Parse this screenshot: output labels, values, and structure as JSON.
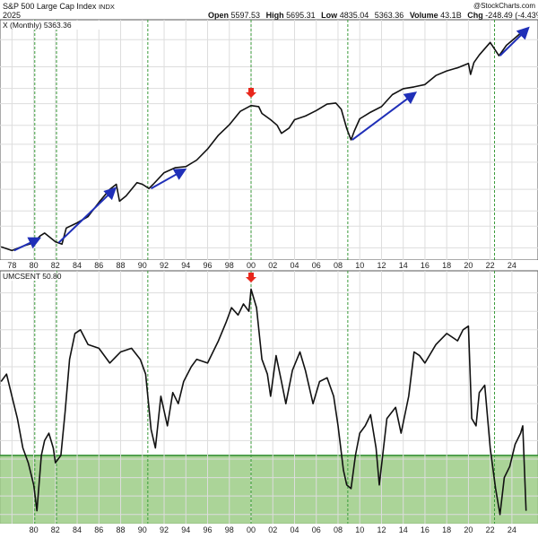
{
  "header": {
    "title": "S&P 500 Large Cap Index",
    "exchange": "INDX",
    "date": "2025",
    "open_label": "Open",
    "open": "5597.53",
    "high_label": "High",
    "high": "5695.31",
    "low_label": "Low",
    "low": "4835.04",
    "close": "5363.36",
    "volume_label": "Volume",
    "volume": "43.1B",
    "chg_label": "Chg",
    "chg": "-248.49 (-4.43%)",
    "watermark": "@StockCharts.com",
    "top_legend": "X (Monthly) 5363.36",
    "bottom_legend": "UMCSENT 50.80"
  },
  "colors": {
    "price_line": "#111111",
    "trend_arrow": "#1f2fb8",
    "peak_marker": "#e8271c",
    "recession_line": "#3a9a3a",
    "zone_fill": "#9ccc86",
    "zone_border": "#2e8b2e",
    "grid": "#dddddd"
  },
  "chart_data": [
    {
      "type": "line",
      "name": "top-panel",
      "scale": "log",
      "xlim": [
        1976.9,
        2026.4
      ],
      "ylim": [
        85,
        6800
      ],
      "x": [
        1977.0,
        1978.0,
        1979.0,
        1980.0,
        1980.6,
        1981.0,
        1982.0,
        1982.6,
        1983.0,
        1984.0,
        1985.0,
        1986.0,
        1987.0,
        1987.6,
        1987.9,
        1988.5,
        1989.5,
        1990.0,
        1990.6,
        1991.0,
        1992.0,
        1993.0,
        1994.0,
        1995.0,
        1996.0,
        1997.0,
        1998.0,
        1999.0,
        2000.0,
        2000.7,
        2001.0,
        2001.8,
        2002.4,
        2002.8,
        2003.5,
        2004.0,
        2005.0,
        2006.0,
        2007.0,
        2007.8,
        2008.3,
        2008.8,
        2009.2,
        2009.5,
        2010.0,
        2011.0,
        2012.0,
        2013.0,
        2014.0,
        2015.0,
        2016.0,
        2017.0,
        2018.0,
        2019.0,
        2020.0,
        2020.2,
        2020.5,
        2021.0,
        2022.0,
        2022.8,
        2023.0,
        2023.5,
        2024.0,
        2024.8,
        2025.0,
        2025.3
      ],
      "y": [
        102,
        95,
        103,
        110,
        125,
        132,
        112,
        107,
        145,
        160,
        180,
        235,
        300,
        330,
        240,
        265,
        340,
        330,
        305,
        330,
        410,
        450,
        460,
        520,
        640,
        830,
        1010,
        1300,
        1450,
        1420,
        1250,
        1110,
        1000,
        860,
        950,
        1110,
        1190,
        1320,
        1490,
        1520,
        1350,
        940,
        760,
        900,
        1130,
        1280,
        1420,
        1780,
        1990,
        2060,
        2150,
        2550,
        2780,
        2950,
        3200,
        2600,
        3250,
        3750,
        4750,
        3700,
        3900,
        4500,
        4900,
        5650,
        5890,
        5363
      ],
      "annotations": [
        {
          "type": "trend-arrow",
          "x": [
            1978.2,
            1980.4
          ],
          "y": [
            95,
            118
          ]
        },
        {
          "type": "trend-arrow",
          "x": [
            1982.3,
            1987.4
          ],
          "y": [
            110,
            300
          ]
        },
        {
          "type": "trend-arrow",
          "x": [
            1990.8,
            1993.8
          ],
          "y": [
            305,
            430
          ]
        },
        {
          "type": "trend-arrow",
          "x": [
            2009.3,
            2015.0
          ],
          "y": [
            760,
            1810
          ]
        },
        {
          "type": "trend-arrow",
          "x": [
            2022.9,
            2025.4
          ],
          "y": [
            3700,
            6100
          ]
        },
        {
          "type": "peak-marker",
          "x": 2000.0,
          "y": 1680
        }
      ],
      "xticks": [
        "78",
        "80",
        "82",
        "84",
        "86",
        "88",
        "90",
        "92",
        "94",
        "96",
        "98",
        "00",
        "02",
        "04",
        "06",
        "08",
        "10",
        "12",
        "14",
        "16",
        "18",
        "20",
        "22",
        "24"
      ]
    },
    {
      "type": "line",
      "name": "UMCSENT",
      "xlim": [
        1976.9,
        2026.4
      ],
      "ylim": [
        48,
        115
      ],
      "x": [
        1977.0,
        1977.5,
        1978.0,
        1978.5,
        1979.0,
        1979.5,
        1980.0,
        1980.3,
        1980.7,
        1981.0,
        1981.4,
        1981.8,
        1982.0,
        1982.5,
        1982.9,
        1983.3,
        1983.8,
        1984.3,
        1985.0,
        1986.0,
        1987.0,
        1988.0,
        1989.0,
        1989.8,
        1990.3,
        1990.8,
        1991.2,
        1991.7,
        1992.3,
        1992.8,
        1993.3,
        1993.8,
        1994.5,
        1995.0,
        1996.0,
        1997.0,
        1997.7,
        1998.2,
        1998.8,
        1999.3,
        1999.8,
        2000.0,
        2000.5,
        2001.0,
        2001.5,
        2001.8,
        2002.3,
        2002.8,
        2003.2,
        2003.8,
        2004.5,
        2005.0,
        2005.7,
        2006.3,
        2007.0,
        2007.6,
        2008.0,
        2008.5,
        2008.8,
        2009.2,
        2009.6,
        2010.0,
        2010.5,
        2011.0,
        2011.5,
        2011.8,
        2012.5,
        2013.3,
        2013.8,
        2014.5,
        2015.0,
        2015.5,
        2016.0,
        2017.0,
        2018.0,
        2019.0,
        2019.5,
        2020.0,
        2020.3,
        2020.7,
        2021.0,
        2021.5,
        2022.0,
        2022.5,
        2022.9,
        2023.3,
        2023.8,
        2024.3,
        2024.8,
        2025.0,
        2025.3
      ],
      "y": [
        86,
        88,
        82,
        76,
        68,
        64,
        58,
        51,
        66,
        70,
        72,
        68,
        64,
        66,
        78,
        92,
        99,
        100,
        96,
        95,
        91,
        94,
        95,
        92,
        88,
        73,
        68,
        82,
        74,
        83,
        80,
        86,
        90,
        92,
        91,
        97,
        102,
        106,
        104,
        107,
        105,
        111,
        106,
        92,
        88,
        82,
        93,
        86,
        80,
        89,
        94,
        89,
        80,
        86,
        87,
        82,
        74,
        62,
        58,
        57,
        66,
        72,
        74,
        77,
        68,
        58,
        76,
        79,
        72,
        82,
        94,
        93,
        91,
        96,
        99,
        97,
        100,
        101,
        76,
        74,
        83,
        85,
        68,
        57,
        50,
        60,
        63,
        69,
        72,
        74,
        51
      ],
      "zones": [
        {
          "from": 48,
          "to": 66
        }
      ],
      "xticks": [
        "80",
        "82",
        "84",
        "86",
        "88",
        "90",
        "92",
        "94",
        "96",
        "98",
        "00",
        "02",
        "04",
        "06",
        "08",
        "10",
        "12",
        "14",
        "16",
        "18",
        "20",
        "22",
        "24"
      ]
    }
  ],
  "recession_markers_x": [
    1980.1,
    1982.1,
    1990.5,
    2000.0,
    2008.9,
    2022.4
  ],
  "xtick_values": [
    1978,
    1980,
    1982,
    1984,
    1986,
    1988,
    1990,
    1992,
    1994,
    1996,
    1998,
    2000,
    2002,
    2004,
    2006,
    2008,
    2010,
    2012,
    2014,
    2016,
    2018,
    2020,
    2022,
    2024
  ]
}
